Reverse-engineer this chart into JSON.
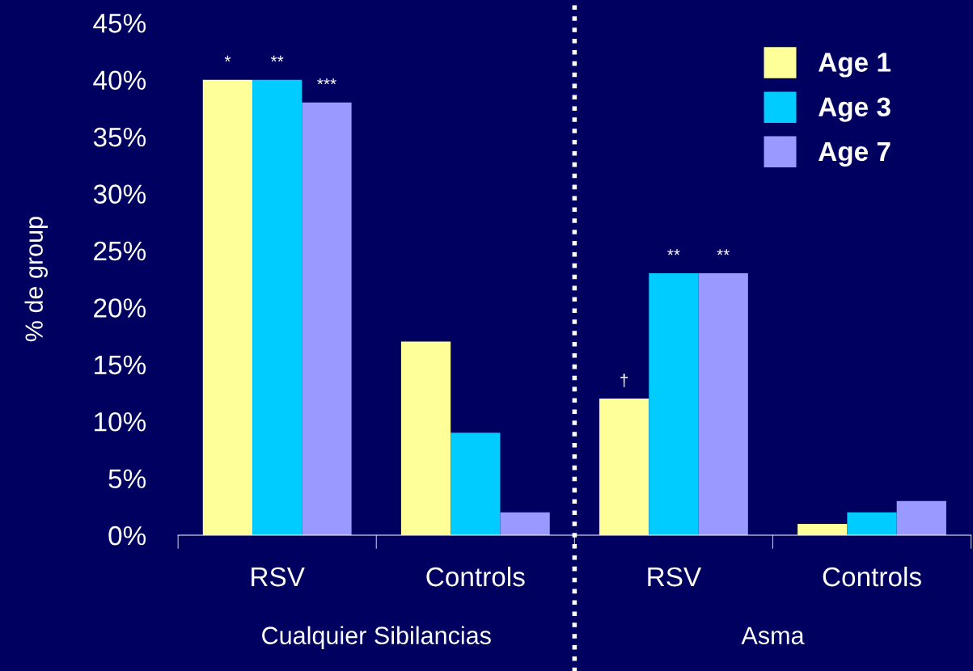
{
  "chart_data": {
    "type": "bar",
    "ylabel": "% de group",
    "categories": [
      "RSV",
      "Controls",
      "RSV",
      "Controls"
    ],
    "series": [
      {
        "name": "Age 1",
        "color": "#ffff99",
        "values": [
          40,
          17,
          12,
          1
        ],
        "value_labels": [
          "*",
          null,
          "†",
          null
        ]
      },
      {
        "name": "Age 3",
        "color": "#00ccff",
        "values": [
          40,
          9,
          23,
          2
        ],
        "value_labels": [
          "**",
          null,
          "**",
          null
        ]
      },
      {
        "name": "Age 7",
        "color": "#9999ff",
        "values": [
          38,
          2,
          23,
          3
        ],
        "value_labels": [
          "***",
          null,
          "**",
          null
        ]
      }
    ],
    "ylim": [
      0,
      45
    ],
    "yticks": [
      {
        "value": 0,
        "label": "0%"
      },
      {
        "value": 5,
        "label": "5%"
      },
      {
        "value": 10,
        "label": "10%"
      },
      {
        "value": 15,
        "label": "15%"
      },
      {
        "value": 20,
        "label": "20%"
      },
      {
        "value": 25,
        "label": "25%"
      },
      {
        "value": 30,
        "label": "30%"
      },
      {
        "value": 35,
        "label": "35%"
      },
      {
        "value": 40,
        "label": "40%"
      },
      {
        "value": 45,
        "label": "45%"
      }
    ],
    "annotations": [
      "Cualquier Sibilancias",
      "Asma"
    ],
    "legend": "top right",
    "grid": false
  }
}
